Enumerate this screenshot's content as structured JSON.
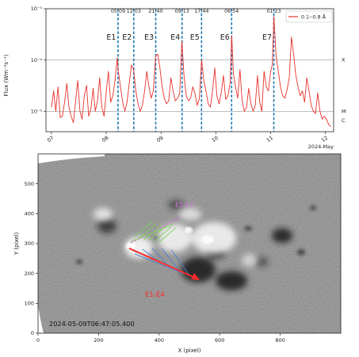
{
  "chart_data": [
    {
      "type": "line",
      "ylabel": "Flux (Wm⁻²s⁻¹)",
      "yscale": "log",
      "ylim": [
        4e-06,
        0.001
      ],
      "xlim": [
        6.9,
        12.15
      ],
      "yticks": [
        {
          "value": 0.001,
          "label": "10⁻³"
        },
        {
          "value": 0.0001,
          "label": "10⁻⁴"
        },
        {
          "value": 1e-05,
          "label": "10⁻⁵"
        }
      ],
      "xticks": [
        {
          "value": 7,
          "label": "07"
        },
        {
          "value": 8,
          "label": "08"
        },
        {
          "value": 9,
          "label": "09"
        },
        {
          "value": 10,
          "label": "10"
        },
        {
          "value": 11,
          "label": "11"
        },
        {
          "value": 12,
          "label": "12"
        }
      ],
      "x_unit_label": "2024-May",
      "class_levels": [
        {
          "label": "X",
          "value": 0.0001
        },
        {
          "label": "M",
          "value": 1e-05
        },
        {
          "label": "C",
          "value": 1e-06
        }
      ],
      "legend": {
        "label": "0.1--0.8 Å",
        "placement": "top-right"
      },
      "series_color": "#e8312b",
      "event_color": "#1f77b4",
      "events": [
        {
          "name": "E1",
          "time": "05:09",
          "x": 8.215
        },
        {
          "name": "E2",
          "time": "12:03",
          "x": 8.502
        },
        {
          "name": "E3",
          "time": "21:40",
          "x": 8.903
        },
        {
          "name": "E4",
          "time": "09:13",
          "x": 9.384
        },
        {
          "name": "E5",
          "time": "17:44",
          "x": 9.739
        },
        {
          "name": "E6",
          "time": "06:54",
          "x": 10.288
        },
        {
          "name": "E7",
          "time": "01:23",
          "x": 11.058
        }
      ],
      "series": [
        {
          "x": [
            7.0,
            7.04,
            7.08,
            7.12,
            7.16,
            7.2,
            7.24,
            7.28,
            7.32,
            7.36,
            7.4,
            7.44,
            7.48,
            7.52,
            7.56,
            7.6,
            7.64,
            7.68,
            7.72,
            7.76,
            7.8,
            7.84,
            7.88,
            7.92,
            7.96,
            8.0,
            8.04,
            8.08,
            8.12,
            8.16,
            8.2,
            8.22,
            8.26,
            8.3,
            8.34,
            8.38,
            8.42,
            8.46,
            8.5,
            8.54,
            8.58,
            8.62,
            8.66,
            8.7,
            8.74,
            8.78,
            8.82,
            8.86,
            8.9,
            8.94,
            8.98,
            9.02,
            9.06,
            9.1,
            9.14,
            9.18,
            9.22,
            9.26,
            9.3,
            9.34,
            9.38,
            9.42,
            9.46,
            9.5,
            9.54,
            9.58,
            9.62,
            9.66,
            9.7,
            9.74,
            9.78,
            9.82,
            9.86,
            9.9,
            9.94,
            9.98,
            10.02,
            10.06,
            10.1,
            10.14,
            10.18,
            10.22,
            10.26,
            10.29,
            10.32,
            10.36,
            10.4,
            10.44,
            10.48,
            10.52,
            10.56,
            10.6,
            10.64,
            10.68,
            10.72,
            10.76,
            10.8,
            10.84,
            10.88,
            10.92,
            10.96,
            11.0,
            11.03,
            11.06,
            11.1,
            11.14,
            11.18,
            11.22,
            11.26,
            11.3,
            11.34,
            11.38,
            11.42,
            11.46,
            11.5,
            11.54,
            11.58,
            11.62,
            11.66,
            11.7,
            11.74,
            11.78,
            11.82,
            11.86,
            11.9,
            11.94,
            11.98,
            12.02,
            12.06,
            12.1
          ],
          "y": [
            1.2e-05,
            2.5e-05,
            1e-05,
            3e-05,
            7.5e-06,
            8e-06,
            1.5e-05,
            3.5e-05,
            1.2e-05,
            8e-06,
            6e-06,
            1.5e-05,
            4e-05,
            1e-05,
            7e-06,
            2e-05,
            3.2e-05,
            8e-06,
            1.1e-05,
            2.8e-05,
            1e-05,
            1.6e-05,
            4.5e-05,
            1.2e-05,
            8e-06,
            2.4e-05,
            6e-05,
            1.5e-05,
            2e-05,
            4e-05,
            0.00011,
            6e-05,
            3e-05,
            1.5e-05,
            1e-05,
            1.5e-05,
            3.5e-05,
            8e-05,
            6.5e-05,
            2.5e-05,
            1.4e-05,
            1e-05,
            1.3e-05,
            2.5e-05,
            6e-05,
            3e-05,
            1.8e-05,
            2.5e-05,
            0.00012,
            0.00013,
            7e-05,
            3e-05,
            1.8e-05,
            1.4e-05,
            1.6e-05,
            4.5e-05,
            2.5e-05,
            1.6e-05,
            1.8e-05,
            2.2e-05,
            0.00023,
            5e-05,
            2e-05,
            1.6e-05,
            1.8e-05,
            3e-05,
            2.2e-05,
            1.3e-05,
            1.8e-05,
            0.0001,
            4e-05,
            2.5e-05,
            1.4e-05,
            1.2e-05,
            2.5e-05,
            7e-05,
            2e-05,
            1.4e-05,
            2.4e-05,
            5e-05,
            1.7e-05,
            2e-05,
            3.5e-05,
            0.0003,
            5.5e-05,
            3e-05,
            1.8e-05,
            6.5e-05,
            1.6e-05,
            1e-05,
            1.2e-05,
            2.8e-05,
            1.4e-05,
            1e-05,
            1.3e-05,
            5e-05,
            1.5e-05,
            1e-05,
            6e-05,
            3e-05,
            2.5e-05,
            6e-05,
            8e-05,
            0.0007,
            0.00012,
            6e-05,
            3e-05,
            2e-05,
            1.8e-05,
            2.6e-05,
            4.5e-05,
            0.00028,
            0.00013,
            5e-05,
            3e-05,
            2e-05,
            2.5e-05,
            1.5e-05,
            4.5e-05,
            2.5e-05,
            1.3e-05,
            1e-05,
            9e-06,
            2.3e-05,
            1e-05,
            7e-06,
            8e-06,
            7e-06,
            5.5e-06,
            5e-06
          ]
        }
      ]
    },
    {
      "type": "image",
      "xlabel": "X (pixel)",
      "ylabel": "Y (pixel)",
      "xlim": [
        0,
        1000
      ],
      "ylim": [
        0,
        600
      ],
      "xticks": [
        0,
        200,
        400,
        600,
        800
      ],
      "yticks": [
        0,
        100,
        200,
        300,
        400,
        500
      ],
      "timestamp": "2024-05-09T06:47:05.400",
      "annotations": [
        {
          "label": "E1-E4",
          "color": "#ff2a2a"
        },
        {
          "label": "E5-E7",
          "color": "#d070d8"
        }
      ]
    }
  ]
}
